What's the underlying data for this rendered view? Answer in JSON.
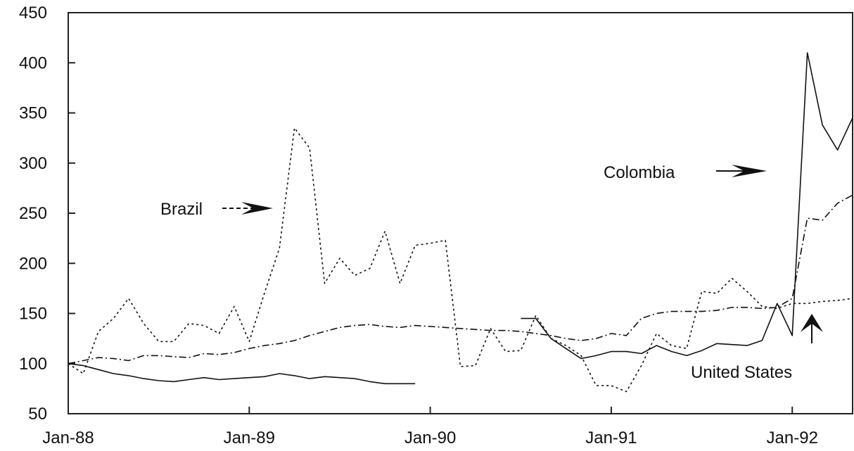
{
  "chart_data": {
    "type": "line",
    "title": "",
    "xlabel": "",
    "ylabel": "",
    "ylim": [
      50,
      450
    ],
    "yticks": [
      50,
      100,
      150,
      200,
      250,
      300,
      350,
      400,
      450
    ],
    "xtick_labels": [
      "Jan-88",
      "Jan-89",
      "Jan-90",
      "Jan-91",
      "Jan-92"
    ],
    "x_months": [
      "1988-01",
      "1988-02",
      "1988-03",
      "1988-04",
      "1988-05",
      "1988-06",
      "1988-07",
      "1988-08",
      "1988-09",
      "1988-10",
      "1988-11",
      "1988-12",
      "1989-01",
      "1989-02",
      "1989-03",
      "1989-04",
      "1989-05",
      "1989-06",
      "1989-07",
      "1989-08",
      "1989-09",
      "1989-10",
      "1989-11",
      "1989-12",
      "1990-01",
      "1990-02",
      "1990-03",
      "1990-04",
      "1990-05",
      "1990-06",
      "1990-07",
      "1990-08",
      "1990-09",
      "1990-10",
      "1990-11",
      "1990-12",
      "1991-01",
      "1991-02",
      "1991-03",
      "1991-04",
      "1991-05",
      "1991-06",
      "1991-07",
      "1991-08",
      "1991-09",
      "1991-10",
      "1991-11",
      "1991-12",
      "1992-01",
      "1992-02",
      "1992-03",
      "1992-04",
      "1992-05"
    ],
    "grid": false,
    "series": [
      {
        "name": "Brazil",
        "dash": "3 4",
        "values": [
          100,
          90,
          132,
          145,
          165,
          140,
          122,
          122,
          140,
          138,
          130,
          157,
          122,
          170,
          215,
          335,
          315,
          180,
          205,
          188,
          195,
          232,
          180,
          218,
          220,
          223,
          97,
          98,
          135,
          112,
          113,
          148,
          125,
          118,
          108,
          78,
          78,
          72,
          98,
          130,
          118,
          115,
          172,
          170,
          185,
          172,
          157,
          155,
          160,
          160,
          162,
          163,
          165
        ]
      },
      {
        "name": "Colombia",
        "dash": "",
        "values": [
          100,
          98,
          94,
          90,
          88,
          85,
          83,
          82,
          84,
          86,
          84,
          85,
          86,
          87,
          90,
          88,
          85,
          87,
          86,
          85,
          82,
          80,
          80,
          80,
          null,
          null,
          null,
          null,
          null,
          null,
          145,
          145,
          125,
          115,
          105,
          108,
          112,
          112,
          110,
          118,
          112,
          108,
          113,
          120,
          119,
          118,
          123,
          160,
          128,
          410,
          338,
          313,
          345
        ]
      },
      {
        "name": "United States",
        "dash": "10 4 2 4",
        "values": [
          100,
          103,
          106,
          105,
          103,
          108,
          108,
          107,
          106,
          110,
          109,
          111,
          115,
          118,
          120,
          123,
          128,
          132,
          136,
          138,
          139,
          137,
          136,
          138,
          137,
          136,
          135,
          134,
          133,
          133,
          132,
          130,
          128,
          125,
          123,
          125,
          130,
          128,
          145,
          150,
          152,
          152,
          152,
          153,
          156,
          156,
          155,
          156,
          165,
          245,
          243,
          260,
          268
        ]
      }
    ],
    "annotations": [
      {
        "text": "Brazil",
        "arrow": "right"
      },
      {
        "text": "Colombia",
        "arrow": "right"
      },
      {
        "text": "United States",
        "arrow": "up"
      }
    ]
  }
}
